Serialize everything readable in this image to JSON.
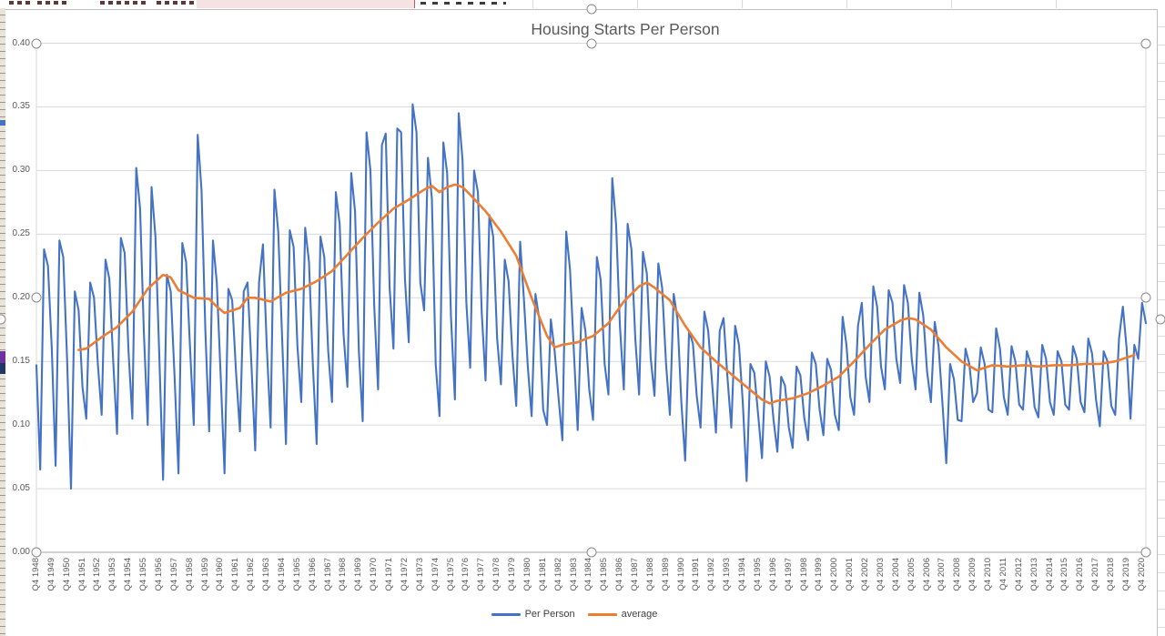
{
  "chart_data": {
    "type": "line",
    "title": "Housing Starts Per Person",
    "xlabel": "",
    "ylabel": "",
    "ylim": [
      0.0,
      0.4
    ],
    "y_tick_labels": [
      "0.00",
      "0.05",
      "0.10",
      "0.15",
      "0.20",
      "0.25",
      "0.30",
      "0.35",
      "0.40"
    ],
    "grid": "horizontal",
    "legend_position": "bottom",
    "x_note": "quarterly data, one axis label per year at Q4",
    "x_tick_labels": [
      "Q4 1948",
      "Q4 1949",
      "Q4 1950",
      "Q4 1951",
      "Q4 1952",
      "Q4 1953",
      "Q4 1954",
      "Q4 1955",
      "Q4 1956",
      "Q4 1957",
      "Q4 1958",
      "Q4 1959",
      "Q4 1960",
      "Q4 1961",
      "Q4 1962",
      "Q4 1963",
      "Q4 1964",
      "Q4 1965",
      "Q4 1966",
      "Q4 1967",
      "Q4 1968",
      "Q4 1969",
      "Q4 1970",
      "Q4 1971",
      "Q4 1972",
      "Q4 1973",
      "Q4 1974",
      "Q4 1975",
      "Q4 1976",
      "Q4 1977",
      "Q4 1978",
      "Q4 1979",
      "Q4 1980",
      "Q4 1981",
      "Q4 1982",
      "Q4 1983",
      "Q4 1984",
      "Q4 1985",
      "Q4 1986",
      "Q4 1987",
      "Q4 1988",
      "Q4 1989",
      "Q4 1990",
      "Q4 1991",
      "Q4 1992",
      "Q4 1993",
      "Q4 1994",
      "Q4 1995",
      "Q4 1996",
      "Q4 1997",
      "Q4 1998",
      "Q4 1999",
      "Q4 2000",
      "Q4 2001",
      "Q4 2002",
      "Q4 2003",
      "Q4 2004",
      "Q4 2005",
      "Q4 2006",
      "Q4 2007",
      "Q4 2008",
      "Q4 2009",
      "Q4 2010",
      "Q4 2011",
      "Q4 2012",
      "Q4 2013",
      "Q4 2014",
      "Q4 2015",
      "Q4 2016",
      "Q4 2017",
      "Q4 2018",
      "Q4 2019",
      "Q4 2020"
    ],
    "series": [
      {
        "name": "Per Person",
        "color": "#4472C4",
        "start_index": 0,
        "values": [
          0.147,
          0.065,
          0.238,
          0.225,
          0.16,
          0.068,
          0.245,
          0.232,
          0.152,
          0.05,
          0.205,
          0.19,
          0.13,
          0.105,
          0.212,
          0.2,
          0.148,
          0.108,
          0.23,
          0.215,
          0.15,
          0.093,
          0.247,
          0.235,
          0.158,
          0.105,
          0.302,
          0.27,
          0.172,
          0.1,
          0.287,
          0.248,
          0.155,
          0.057,
          0.218,
          0.205,
          0.138,
          0.062,
          0.243,
          0.228,
          0.162,
          0.1,
          0.328,
          0.285,
          0.175,
          0.095,
          0.245,
          0.212,
          0.138,
          0.062,
          0.207,
          0.198,
          0.142,
          0.095,
          0.205,
          0.212,
          0.148,
          0.08,
          0.212,
          0.242,
          0.162,
          0.098,
          0.285,
          0.252,
          0.168,
          0.085,
          0.253,
          0.24,
          0.162,
          0.118,
          0.255,
          0.228,
          0.148,
          0.085,
          0.248,
          0.232,
          0.158,
          0.118,
          0.283,
          0.258,
          0.172,
          0.13,
          0.298,
          0.268,
          0.158,
          0.103,
          0.33,
          0.3,
          0.193,
          0.128,
          0.32,
          0.329,
          0.208,
          0.16,
          0.333,
          0.33,
          0.215,
          0.165,
          0.352,
          0.33,
          0.212,
          0.19,
          0.31,
          0.278,
          0.148,
          0.107,
          0.322,
          0.298,
          0.185,
          0.12,
          0.345,
          0.308,
          0.196,
          0.145,
          0.3,
          0.283,
          0.188,
          0.135,
          0.265,
          0.248,
          0.168,
          0.132,
          0.23,
          0.213,
          0.155,
          0.115,
          0.244,
          0.198,
          0.146,
          0.107,
          0.203,
          0.183,
          0.112,
          0.1,
          0.183,
          0.158,
          0.122,
          0.088,
          0.252,
          0.222,
          0.158,
          0.096,
          0.192,
          0.174,
          0.128,
          0.104,
          0.232,
          0.214,
          0.148,
          0.124,
          0.294,
          0.258,
          0.178,
          0.128,
          0.258,
          0.238,
          0.168,
          0.124,
          0.236,
          0.219,
          0.153,
          0.123,
          0.227,
          0.208,
          0.148,
          0.108,
          0.203,
          0.183,
          0.118,
          0.072,
          0.174,
          0.164,
          0.123,
          0.098,
          0.189,
          0.174,
          0.133,
          0.094,
          0.174,
          0.184,
          0.138,
          0.098,
          0.178,
          0.163,
          0.118,
          0.056,
          0.148,
          0.141,
          0.108,
          0.074,
          0.15,
          0.138,
          0.104,
          0.079,
          0.138,
          0.131,
          0.098,
          0.082,
          0.146,
          0.139,
          0.106,
          0.088,
          0.157,
          0.148,
          0.112,
          0.092,
          0.152,
          0.143,
          0.108,
          0.096,
          0.185,
          0.163,
          0.122,
          0.108,
          0.178,
          0.196,
          0.138,
          0.118,
          0.209,
          0.193,
          0.146,
          0.128,
          0.206,
          0.196,
          0.152,
          0.133,
          0.21,
          0.196,
          0.152,
          0.128,
          0.204,
          0.186,
          0.142,
          0.118,
          0.181,
          0.162,
          0.118,
          0.07,
          0.148,
          0.136,
          0.104,
          0.103,
          0.16,
          0.148,
          0.118,
          0.125,
          0.161,
          0.148,
          0.112,
          0.11,
          0.176,
          0.16,
          0.122,
          0.108,
          0.162,
          0.15,
          0.116,
          0.112,
          0.158,
          0.148,
          0.114,
          0.106,
          0.163,
          0.152,
          0.118,
          0.108,
          0.158,
          0.15,
          0.116,
          0.112,
          0.162,
          0.152,
          0.118,
          0.11,
          0.168,
          0.156,
          0.12,
          0.099,
          0.158,
          0.15,
          0.115,
          0.108,
          0.168,
          0.193,
          0.16,
          0.105,
          0.163,
          0.152,
          0.196,
          0.18
        ]
      },
      {
        "name": "average",
        "color": "#ED7D31",
        "anchors": [
          [
            11,
            0.159
          ],
          [
            13,
            0.16
          ],
          [
            17,
            0.169
          ],
          [
            21,
            0.177
          ],
          [
            25,
            0.189
          ],
          [
            29,
            0.207
          ],
          [
            33,
            0.218
          ],
          [
            35,
            0.216
          ],
          [
            37,
            0.206
          ],
          [
            41,
            0.2
          ],
          [
            45,
            0.199
          ],
          [
            47,
            0.193
          ],
          [
            49,
            0.188
          ],
          [
            53,
            0.192
          ],
          [
            55,
            0.2
          ],
          [
            57,
            0.2
          ],
          [
            61,
            0.197
          ],
          [
            65,
            0.204
          ],
          [
            69,
            0.207
          ],
          [
            73,
            0.213
          ],
          [
            77,
            0.221
          ],
          [
            81,
            0.234
          ],
          [
            85,
            0.247
          ],
          [
            89,
            0.259
          ],
          [
            93,
            0.27
          ],
          [
            97,
            0.277
          ],
          [
            101,
            0.285
          ],
          [
            103,
            0.288
          ],
          [
            105,
            0.283
          ],
          [
            107,
            0.287
          ],
          [
            109,
            0.289
          ],
          [
            111,
            0.287
          ],
          [
            113,
            0.281
          ],
          [
            117,
            0.268
          ],
          [
            121,
            0.252
          ],
          [
            125,
            0.233
          ],
          [
            129,
            0.2
          ],
          [
            133,
            0.17
          ],
          [
            135,
            0.161
          ],
          [
            137,
            0.163
          ],
          [
            141,
            0.165
          ],
          [
            145,
            0.17
          ],
          [
            149,
            0.18
          ],
          [
            153,
            0.197
          ],
          [
            157,
            0.209
          ],
          [
            159,
            0.212
          ],
          [
            161,
            0.208
          ],
          [
            165,
            0.198
          ],
          [
            169,
            0.178
          ],
          [
            173,
            0.161
          ],
          [
            177,
            0.15
          ],
          [
            181,
            0.14
          ],
          [
            185,
            0.13
          ],
          [
            189,
            0.12
          ],
          [
            191,
            0.117
          ],
          [
            193,
            0.119
          ],
          [
            197,
            0.121
          ],
          [
            201,
            0.125
          ],
          [
            205,
            0.131
          ],
          [
            209,
            0.138
          ],
          [
            213,
            0.15
          ],
          [
            217,
            0.163
          ],
          [
            221,
            0.175
          ],
          [
            225,
            0.182
          ],
          [
            227,
            0.184
          ],
          [
            229,
            0.183
          ],
          [
            233,
            0.175
          ],
          [
            237,
            0.161
          ],
          [
            241,
            0.15
          ],
          [
            245,
            0.143
          ],
          [
            249,
            0.147
          ],
          [
            253,
            0.146
          ],
          [
            257,
            0.147
          ],
          [
            261,
            0.146
          ],
          [
            265,
            0.147
          ],
          [
            269,
            0.147
          ],
          [
            273,
            0.148
          ],
          [
            277,
            0.148
          ],
          [
            281,
            0.15
          ],
          [
            286,
            0.155
          ]
        ]
      }
    ],
    "colors": {
      "gridline": "#d9d9d9",
      "axis_line": "#a6a6a6",
      "plot_border": "#d9d9d9",
      "title_text": "#595959",
      "tick_text": "#595959"
    }
  }
}
